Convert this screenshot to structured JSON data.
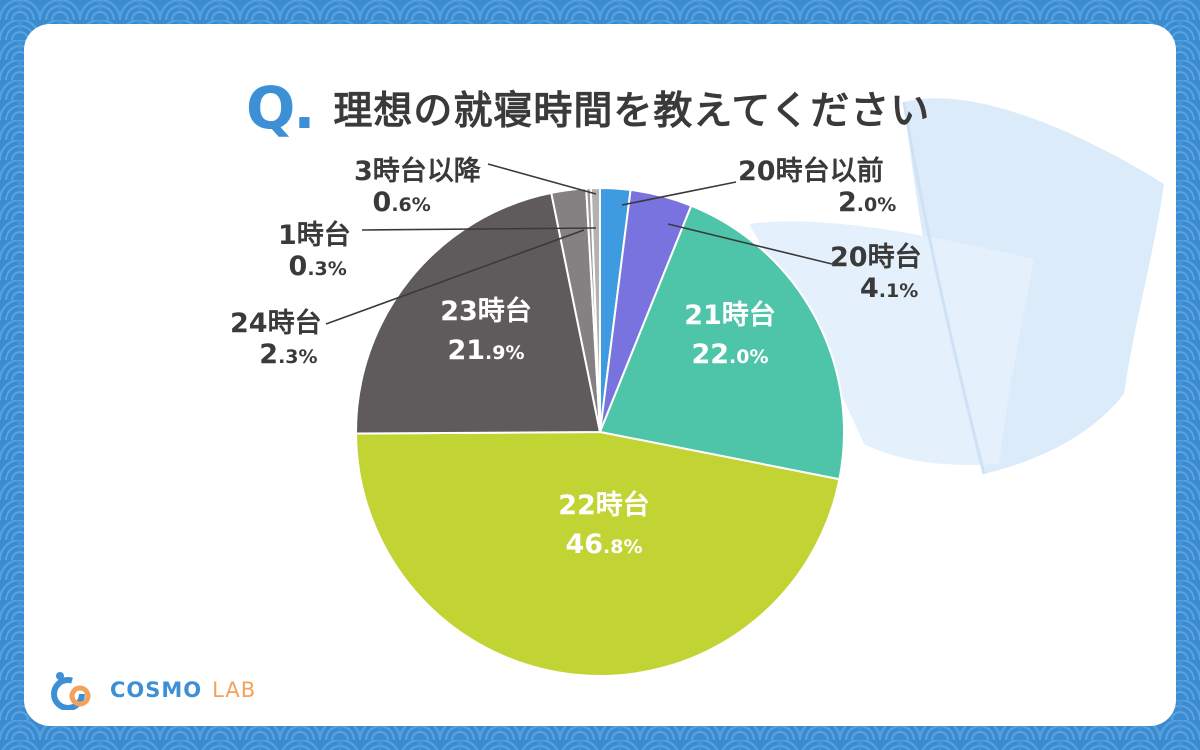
{
  "header": {
    "q_mark": "Q",
    "q_dot": ".",
    "title": "理想の就寝時間を教えてください"
  },
  "colors": {
    "background": "#3b8bd0",
    "card": "#ffffff",
    "accent": "#3d8fd6"
  },
  "chart_data": {
    "type": "pie",
    "start_angle_deg": 0,
    "direction": "clockwise",
    "slices": [
      {
        "label": "20時台以前",
        "value": 2.0,
        "int": "2",
        "dec": ".0%",
        "color": "#3f9be0"
      },
      {
        "label": "20時台",
        "value": 4.1,
        "int": "4",
        "dec": ".1%",
        "color": "#7873de"
      },
      {
        "label": "21時台",
        "value": 22.0,
        "int": "22",
        "dec": ".0%",
        "color": "#4ec4a8"
      },
      {
        "label": "22時台",
        "value": 46.8,
        "int": "46",
        "dec": ".8%",
        "color": "#c2d433"
      },
      {
        "label": "23時台",
        "value": 21.9,
        "int": "21",
        "dec": ".9%",
        "color": "#5f5a5c"
      },
      {
        "label": "24時台",
        "value": 2.3,
        "int": "2",
        "dec": ".3%",
        "color": "#858082"
      },
      {
        "label": "1時台",
        "value": 0.3,
        "int": "0",
        "dec": ".3%",
        "color": "#9a9697"
      },
      {
        "label": "3時台以降",
        "value": 0.6,
        "int": "0",
        "dec": ".6%",
        "color": "#b4b1b2"
      }
    ]
  },
  "logo": {
    "brand": "COSMO",
    "sub": "LAB",
    "icon": "cosmo-logo-icon"
  }
}
